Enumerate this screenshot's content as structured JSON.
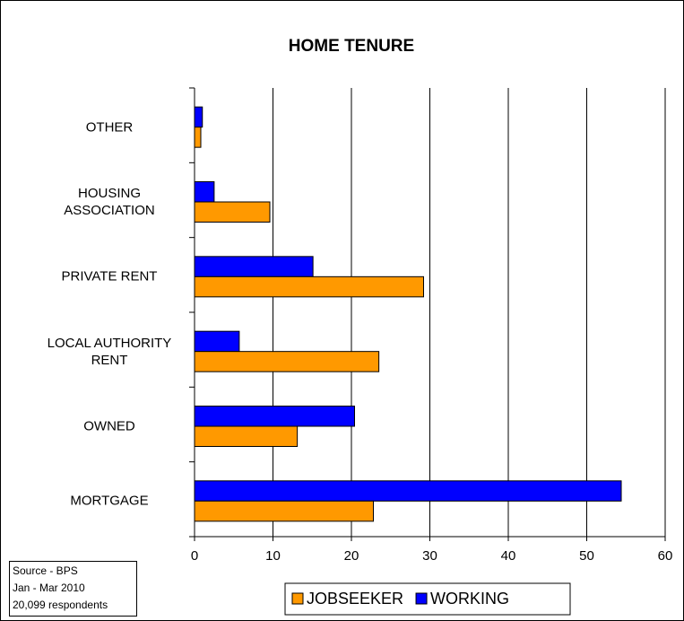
{
  "chart_data": {
    "type": "hbar",
    "title": "HOME TENURE",
    "categories": [
      "OTHER",
      "HOUSING ASSOCIATION",
      "PRIVATE RENT",
      "LOCAL AUTHORITY RENT",
      "OWNED",
      "MORTGAGE"
    ],
    "series": [
      {
        "name": "JOBSEEKER",
        "color": "#FF9900",
        "values": [
          0.8,
          9.6,
          29.2,
          23.5,
          13.1,
          22.8
        ]
      },
      {
        "name": "WORKING",
        "color": "#0000FF",
        "values": [
          1.0,
          2.5,
          15.1,
          5.7,
          20.4,
          54.4
        ]
      }
    ],
    "xlim": [
      0,
      60
    ],
    "xticks": [
      0,
      10,
      20,
      30,
      40,
      50,
      60
    ],
    "grid": true,
    "legend": "bottom",
    "note": [
      "Source - BPS",
      "Jan - Mar 2010",
      "20,099 respondents"
    ]
  }
}
